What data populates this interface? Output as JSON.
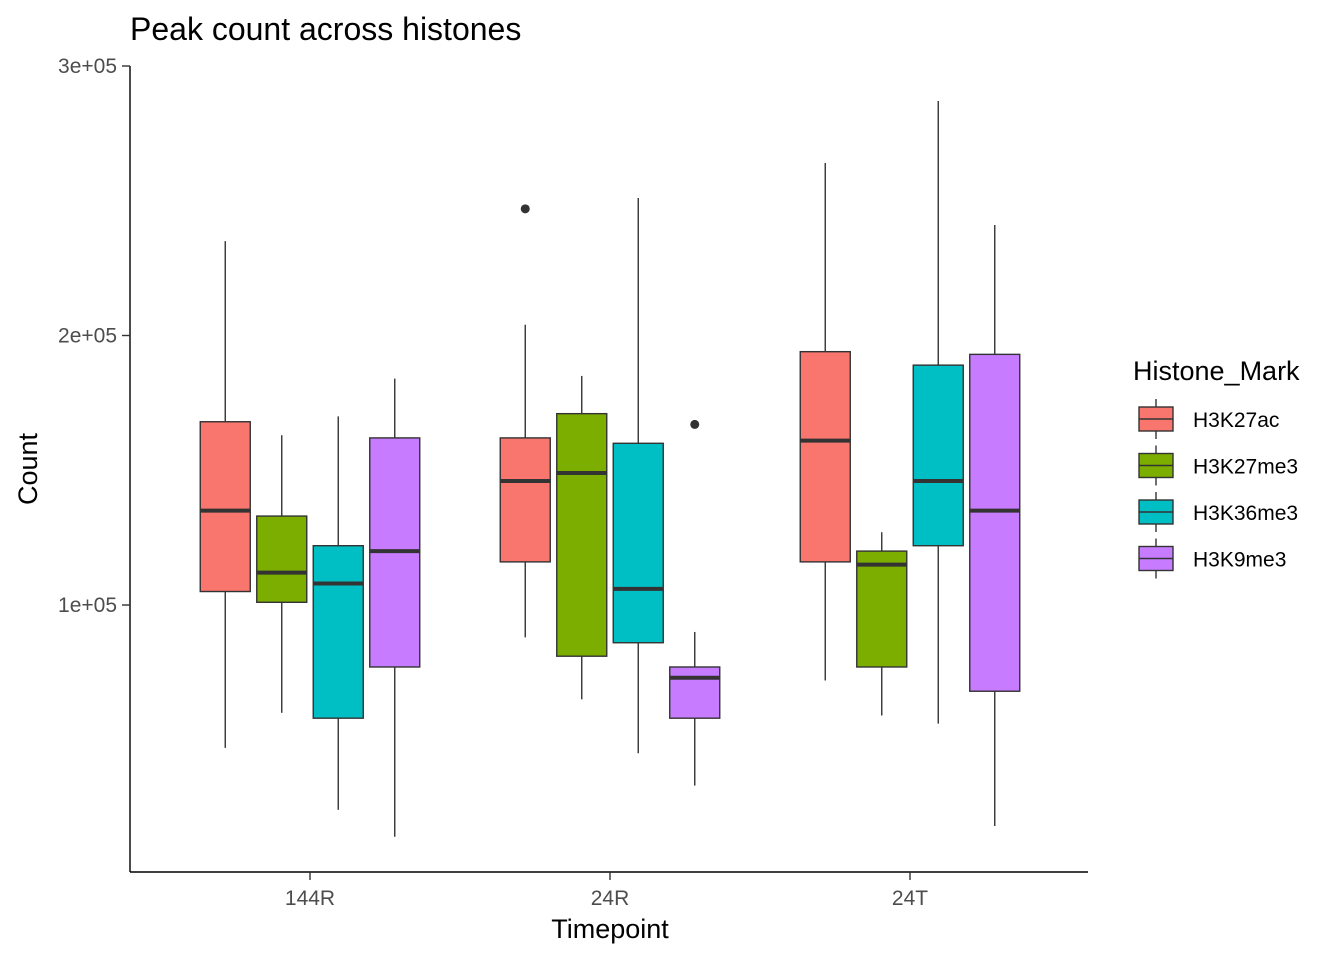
{
  "chart_data": {
    "type": "boxplot",
    "title": "Peak count across histones",
    "xlabel": "Timepoint",
    "ylabel": "Count",
    "categories": [
      "144R",
      "24R",
      "24T"
    ],
    "ylim": [
      0,
      300000
    ],
    "y_ticks": [
      {
        "value": 100000,
        "label": "1e+05"
      },
      {
        "value": 200000,
        "label": "2e+05"
      },
      {
        "value": 300000,
        "label": "3e+05"
      }
    ],
    "grid": false,
    "legend": {
      "title": "Histone_Mark",
      "placement": "right"
    },
    "series": [
      {
        "name": "H3K27ac",
        "color": "#F8766D",
        "boxes": [
          {
            "category": "144R",
            "min": 47000,
            "q1": 105000,
            "median": 135000,
            "q3": 168000,
            "max": 235000,
            "outliers": []
          },
          {
            "category": "24R",
            "min": 88000,
            "q1": 116000,
            "median": 146000,
            "q3": 162000,
            "max": 204000,
            "outliers": [
              247000
            ]
          },
          {
            "category": "24T",
            "min": 72000,
            "q1": 116000,
            "median": 161000,
            "q3": 194000,
            "max": 264000,
            "outliers": []
          }
        ]
      },
      {
        "name": "H3K27me3",
        "color": "#7CAE00",
        "boxes": [
          {
            "category": "144R",
            "min": 60000,
            "q1": 101000,
            "median": 112000,
            "q3": 133000,
            "max": 163000,
            "outliers": []
          },
          {
            "category": "24R",
            "min": 65000,
            "q1": 81000,
            "median": 149000,
            "q3": 171000,
            "max": 185000,
            "outliers": []
          },
          {
            "category": "24T",
            "min": 59000,
            "q1": 77000,
            "median": 115000,
            "q3": 120000,
            "max": 127000,
            "outliers": []
          }
        ]
      },
      {
        "name": "H3K36me3",
        "color": "#00BFC4",
        "boxes": [
          {
            "category": "144R",
            "min": 24000,
            "q1": 58000,
            "median": 108000,
            "q3": 122000,
            "max": 170000,
            "outliers": []
          },
          {
            "category": "24R",
            "min": 45000,
            "q1": 86000,
            "median": 106000,
            "q3": 160000,
            "max": 251000,
            "outliers": []
          },
          {
            "category": "24T",
            "min": 56000,
            "q1": 122000,
            "median": 146000,
            "q3": 189000,
            "max": 287000,
            "outliers": []
          }
        ]
      },
      {
        "name": "H3K9me3",
        "color": "#C77CFF",
        "boxes": [
          {
            "category": "144R",
            "min": 14000,
            "q1": 77000,
            "median": 120000,
            "q3": 162000,
            "max": 184000,
            "outliers": []
          },
          {
            "category": "24R",
            "min": 33000,
            "q1": 58000,
            "median": 73000,
            "q3": 77000,
            "max": 90000,
            "outliers": [
              167000
            ]
          },
          {
            "category": "24T",
            "min": 18000,
            "q1": 68000,
            "median": 135000,
            "q3": 193000,
            "max": 241000,
            "outliers": []
          }
        ]
      }
    ]
  }
}
